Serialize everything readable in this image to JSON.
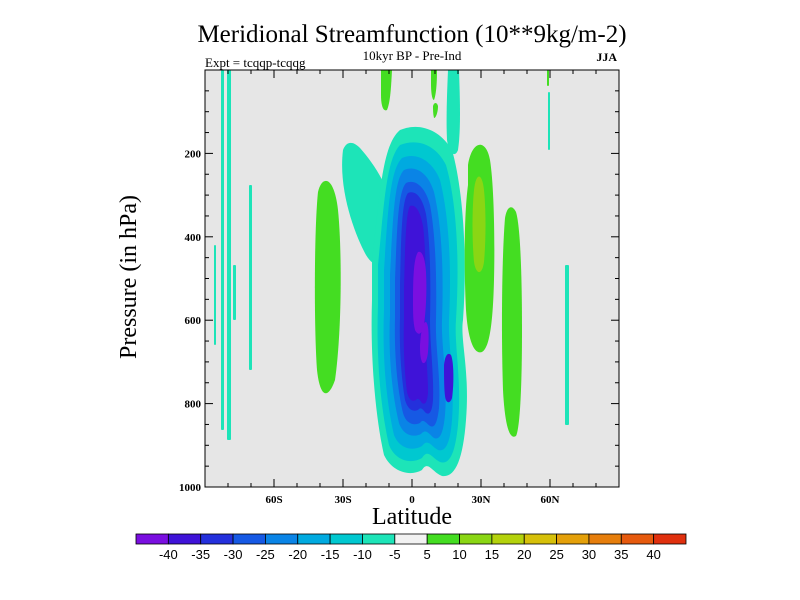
{
  "chart_data": {
    "type": "heatmap",
    "title": "Meridional Streamfunction (10**9kg/m-2)",
    "subtitle": "10kyr BP - Pre-Ind",
    "left_annotation": "Expt = tcqqp-tcqqg",
    "right_annotation": "JJA",
    "xlabel": "Latitude",
    "ylabel": "Pressure (in hPa)",
    "xlim": [
      -90,
      90
    ],
    "ylim": [
      1000,
      0
    ],
    "x_ticks": [
      -60,
      -30,
      0,
      30,
      60
    ],
    "x_tick_labels": [
      "60S",
      "30S",
      "0",
      "30N",
      "60N"
    ],
    "y_ticks": [
      200,
      400,
      600,
      800,
      1000
    ],
    "y_tick_labels": [
      "200",
      "400",
      "600",
      "800",
      "1000"
    ],
    "background_color": "#e6e6e6",
    "colorbar": {
      "levels": [
        "-40",
        "-35",
        "-30",
        "-25",
        "-20",
        "-15",
        "-10",
        "-5",
        "5",
        "10",
        "15",
        "20",
        "25",
        "30",
        "35",
        "40"
      ],
      "colors": [
        "#7a0fe0",
        "#3f13d8",
        "#2430dc",
        "#1659e4",
        "#0a84e6",
        "#00aae0",
        "#00c8d0",
        "#1de4b8",
        "#f2f2f2",
        "#44dd22",
        "#8ad614",
        "#b4d20c",
        "#d6c00a",
        "#e4a00a",
        "#e67e0c",
        "#e65a0e",
        "#e0300e"
      ]
    },
    "features": [
      {
        "name": "tropical-negative-cell",
        "min_value": -40,
        "lat_range": [
          -20,
          22
        ],
        "pressure_range": [
          140,
          990
        ]
      },
      {
        "name": "upper-tropical-tongue",
        "min_value": -10,
        "lat_range": [
          -30,
          -13
        ],
        "pressure_range": [
          180,
          330
        ]
      },
      {
        "name": "subtropical-positive-band-sh",
        "max_value": 10,
        "lat_range": [
          -40,
          -35
        ],
        "pressure_range": [
          260,
          850
        ]
      },
      {
        "name": "subtropical-positive-band-nh",
        "max_value": 15,
        "lat_range": [
          25,
          35
        ],
        "pressure_range": [
          200,
          730
        ]
      },
      {
        "name": "midlat-positive-band-nh",
        "max_value": 10,
        "lat_range": [
          40,
          47
        ],
        "pressure_range": [
          300,
          840
        ]
      },
      {
        "name": "stratospheric-positive-plume-eq",
        "max_value": 10,
        "lat_range": [
          -13,
          -8
        ],
        "pressure_range": [
          0,
          100
        ]
      },
      {
        "name": "stratospheric-positive-plume-nh",
        "max_value": 5,
        "lat_range": [
          9,
          12
        ],
        "pressure_range": [
          0,
          70
        ]
      },
      {
        "name": "stratospheric-negative-plume",
        "min_value": -10,
        "lat_range": [
          15,
          20
        ],
        "pressure_range": [
          0,
          210
        ]
      },
      {
        "name": "high-lat-sh-negative-streaks",
        "min_value": -10,
        "lat_range": [
          -80,
          -65
        ],
        "pressure_range": [
          0,
          880
        ]
      },
      {
        "name": "high-lat-nh-negative-streaks",
        "min_value": -10,
        "lat_range": [
          55,
          72
        ],
        "pressure_range": [
          0,
          850
        ]
      },
      {
        "name": "high-lat-nh-positive-streak",
        "max_value": 5,
        "lat_range": [
          59,
          60
        ],
        "pressure_range": [
          0,
          40
        ]
      }
    ]
  }
}
